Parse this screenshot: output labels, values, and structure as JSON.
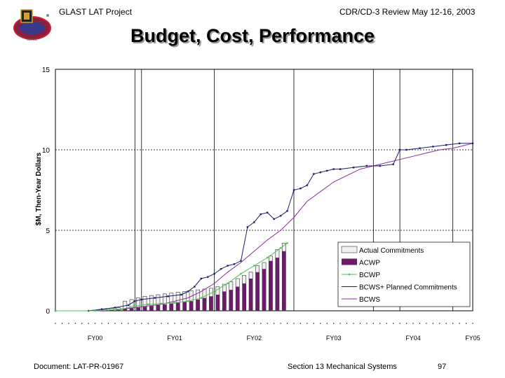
{
  "header": {
    "project": "GLAST LAT Project",
    "review": "CDR/CD-3 Review May 12-16, 2003",
    "title": "Budget, Cost, Performance",
    "logo_text": "GLAST"
  },
  "footer": {
    "document": "Document:  LAT-PR-01967",
    "section": "Section 13   Mechanical Systems",
    "page": "97"
  },
  "colors": {
    "acwp": "#6a1b6a",
    "actual": "#f0f0f0",
    "bcwp": "#55c055",
    "bcws_plus": "#1c1c6e",
    "bcws": "#8a2a9a"
  },
  "chart_data": {
    "type": "bar",
    "title": "",
    "xlabel": "",
    "ylabel": "$M, Then-Year Dollars",
    "ylim": [
      0,
      15
    ],
    "yticks": [
      "0",
      "5",
      "10",
      "15"
    ],
    "xlim": [
      0,
      63
    ],
    "fiscal_years": [
      {
        "label": "FY00",
        "start": 0
      },
      {
        "label": "FY01",
        "start": 12
      },
      {
        "label": "FY02",
        "start": 24
      },
      {
        "label": "FY03",
        "start": 36
      },
      {
        "label": "FY04",
        "start": 48
      },
      {
        "label": "FY05",
        "start": 60
      }
    ],
    "legend": [
      {
        "key": "actual",
        "label": "Actual Commitments"
      },
      {
        "key": "acwp",
        "label": "ACWP"
      },
      {
        "key": "bcwp",
        "label": "BCWP"
      },
      {
        "key": "bcws_plus",
        "label": "BCWS+ Planned Commitments"
      },
      {
        "key": "bcws",
        "label": "BCWS"
      }
    ],
    "bars": {
      "months": [
        1,
        2,
        3,
        4,
        5,
        6,
        7,
        8,
        9,
        10,
        11,
        12,
        13,
        14,
        15,
        16,
        17,
        18,
        19,
        20,
        21,
        22,
        23,
        24,
        25,
        26,
        27,
        28,
        29,
        30,
        31,
        32,
        33,
        34,
        35
      ],
      "actual_commitments": [
        0,
        0,
        0,
        0,
        0,
        0,
        0.05,
        0.1,
        0.15,
        0.2,
        0.6,
        0.7,
        0.8,
        0.9,
        0.95,
        1.0,
        1.05,
        1.1,
        1.15,
        1.2,
        1.25,
        1.3,
        1.35,
        1.4,
        1.5,
        1.65,
        1.8,
        2.0,
        2.2,
        2.4,
        2.8,
        3.0,
        3.4,
        3.8,
        4.2
      ],
      "acwp": [
        0,
        0,
        0,
        0,
        0,
        0,
        0,
        0.02,
        0.05,
        0.08,
        0.12,
        0.16,
        0.2,
        0.25,
        0.3,
        0.35,
        0.4,
        0.45,
        0.5,
        0.55,
        0.6,
        0.7,
        0.8,
        0.9,
        1.0,
        1.2,
        1.3,
        1.5,
        1.7,
        2.0,
        2.4,
        2.6,
        3.1,
        3.3,
        3.7
      ]
    },
    "bcwp": {
      "x": [
        0,
        6,
        8,
        10,
        12,
        14,
        16,
        18,
        20,
        22,
        24,
        26,
        28,
        30,
        32,
        34,
        35
      ],
      "y": [
        0,
        0,
        0.05,
        0.1,
        0.3,
        0.4,
        0.45,
        0.5,
        0.6,
        0.8,
        1.2,
        1.7,
        2.3,
        2.8,
        3.3,
        3.9,
        4.2
      ]
    },
    "bcws_plus": {
      "x": [
        0,
        5,
        7,
        9,
        11,
        12,
        13,
        15,
        17,
        19,
        20,
        21,
        22,
        23,
        24,
        25,
        26,
        27,
        28,
        29,
        30,
        31,
        32,
        33,
        34,
        35,
        36,
        37,
        38,
        39,
        40,
        41,
        42,
        43,
        45,
        47,
        49,
        51,
        52,
        53,
        55,
        57,
        59,
        61,
        63
      ],
      "y": [
        0,
        0,
        0.1,
        0.2,
        0.35,
        0.6,
        0.7,
        0.8,
        0.9,
        1.0,
        1.2,
        1.5,
        2.0,
        2.1,
        2.3,
        2.6,
        2.8,
        2.9,
        3.1,
        5.2,
        5.5,
        6.0,
        6.1,
        5.7,
        5.9,
        6.2,
        7.5,
        7.6,
        7.8,
        8.5,
        8.6,
        8.7,
        8.8,
        8.8,
        8.9,
        9.0,
        9.0,
        9.1,
        10.0,
        10.0,
        10.1,
        10.2,
        10.3,
        10.4,
        10.4
      ]
    },
    "bcws": {
      "x": [
        0,
        5,
        8,
        10,
        12,
        14,
        16,
        18,
        20,
        22,
        24,
        26,
        28,
        30,
        32,
        34,
        36,
        38,
        40,
        42,
        44,
        46,
        48,
        50,
        52,
        54,
        56,
        58,
        60,
        62,
        63
      ],
      "y": [
        0,
        0,
        0.05,
        0.1,
        0.2,
        0.3,
        0.4,
        0.6,
        0.8,
        1.2,
        1.7,
        2.4,
        3.0,
        3.7,
        4.4,
        5.0,
        5.8,
        6.8,
        7.4,
        8.0,
        8.4,
        8.8,
        9.0,
        9.2,
        9.4,
        9.6,
        9.8,
        10.0,
        10.1,
        10.3,
        10.4
      ]
    }
  }
}
